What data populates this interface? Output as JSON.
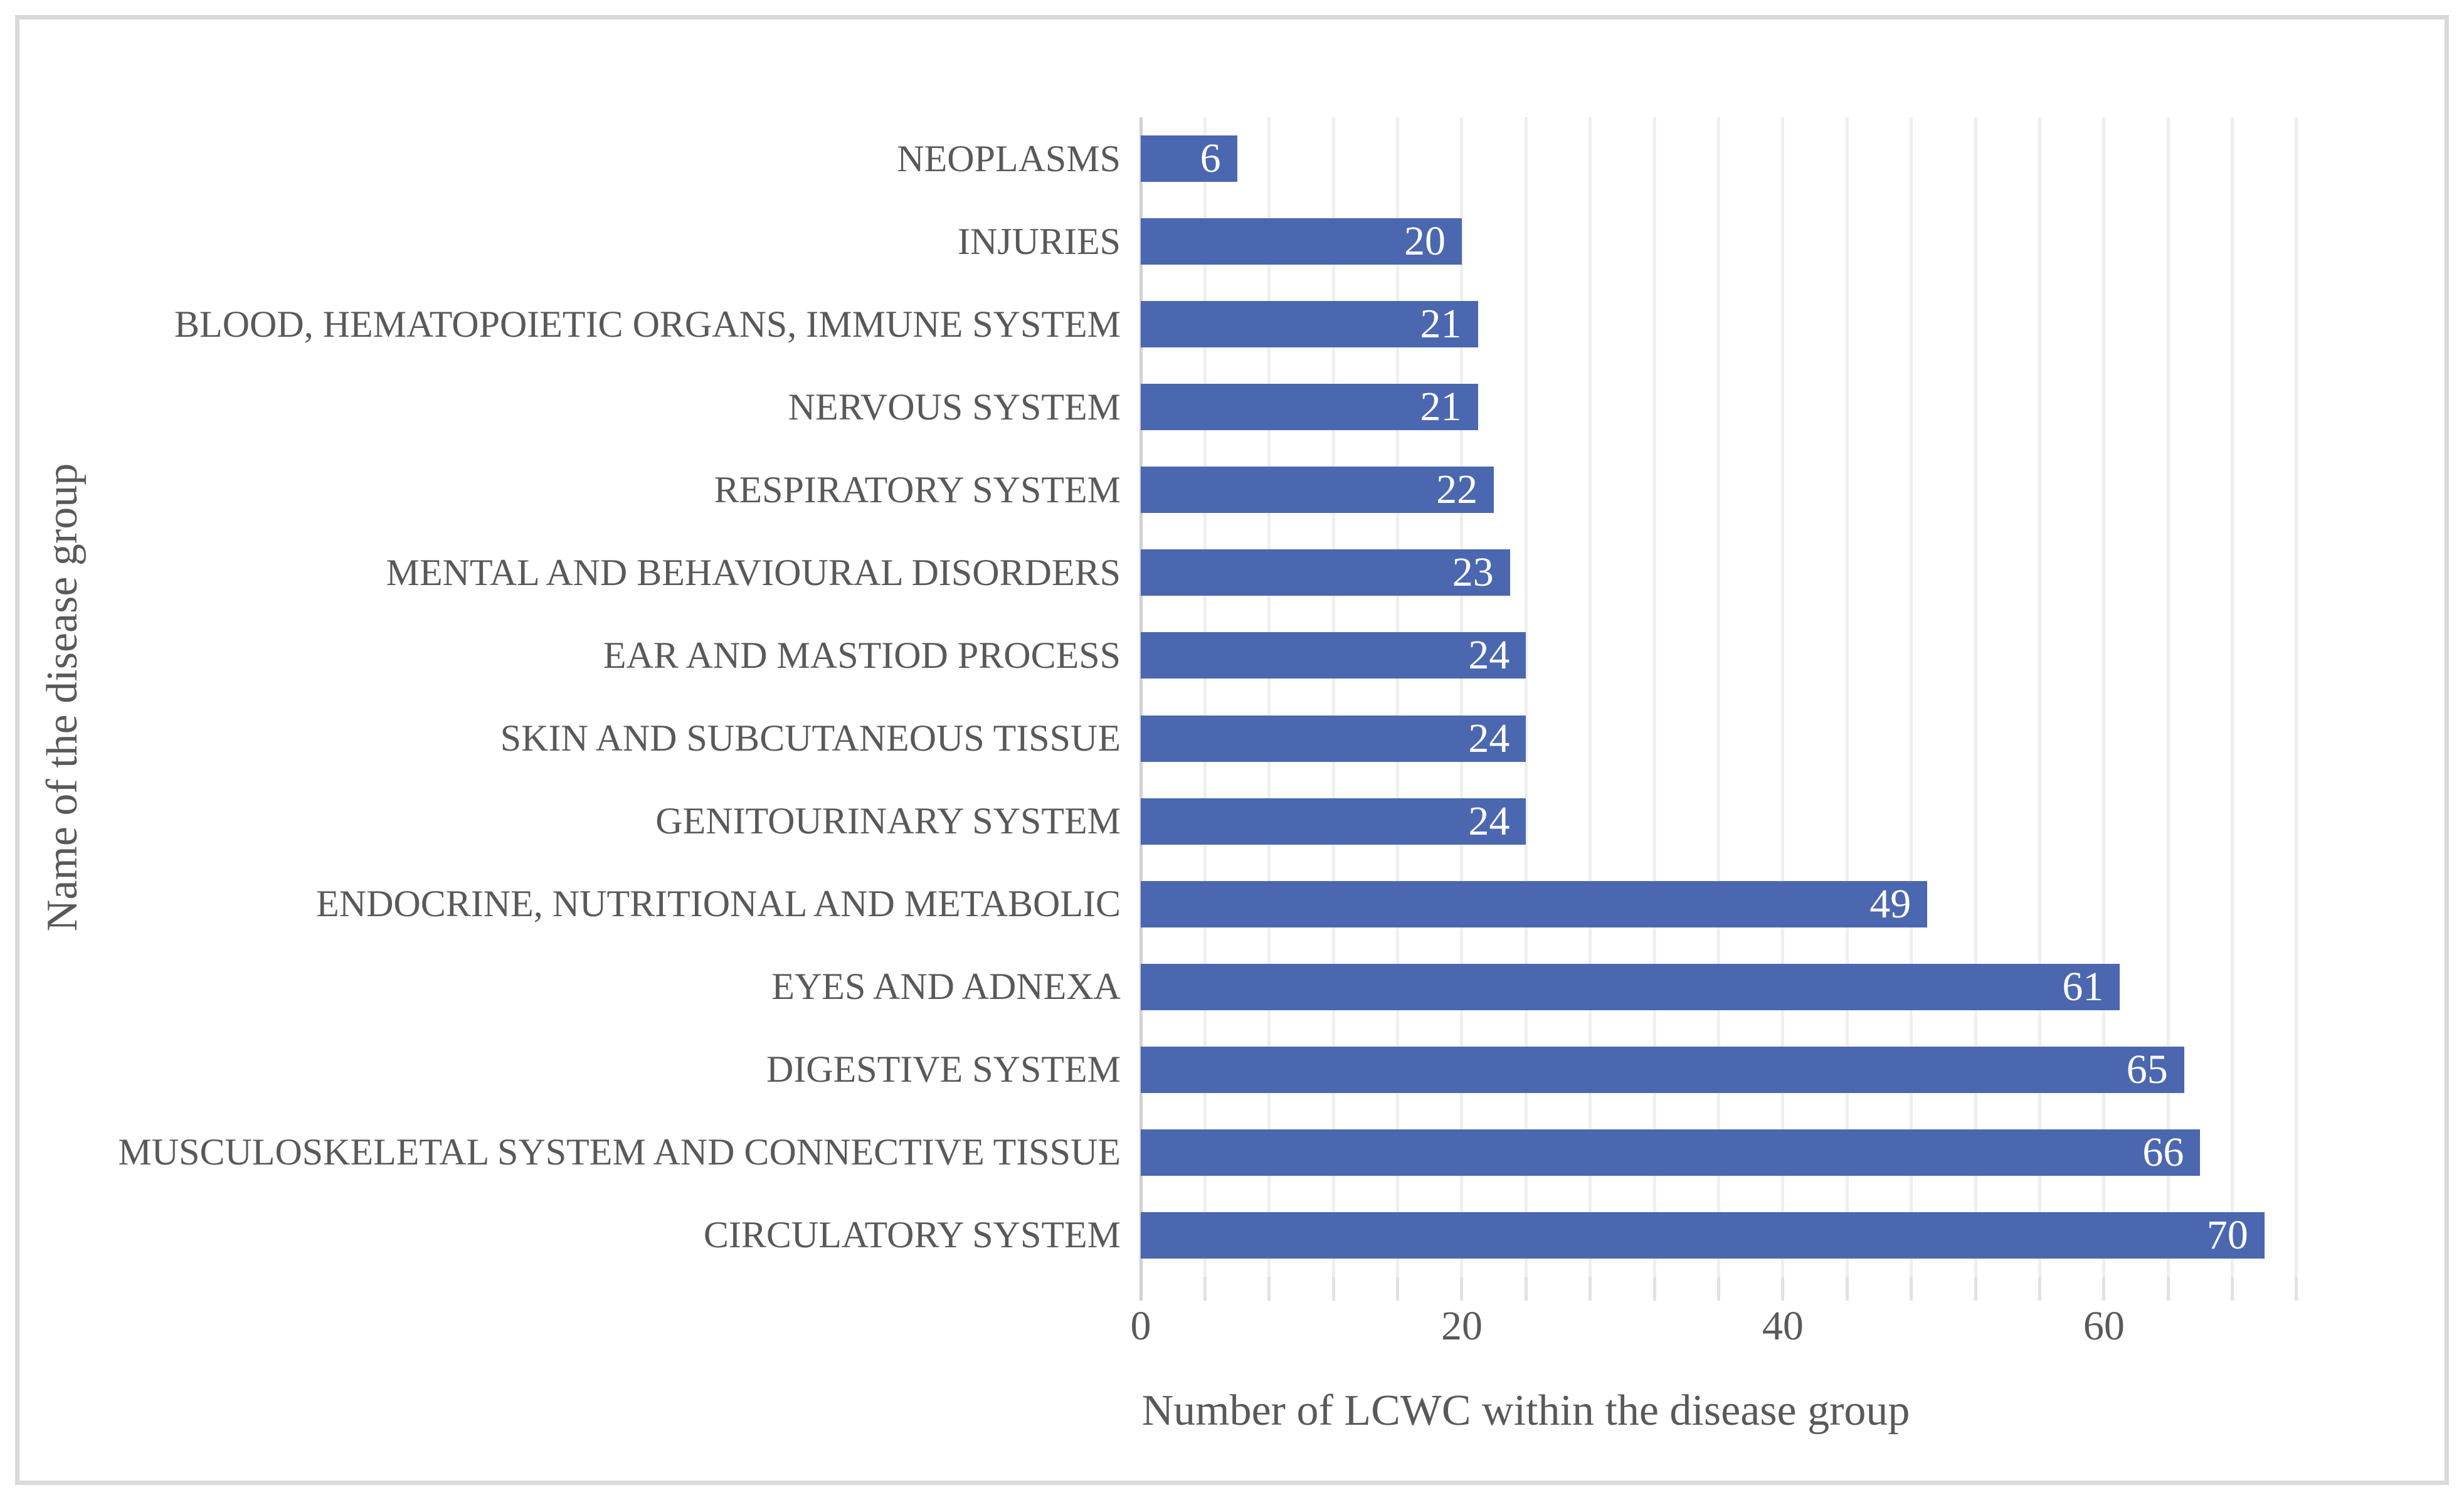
{
  "figure": {
    "background": "#ffffff",
    "border_color": "#d9d9d9"
  },
  "chart_data": {
    "type": "bar",
    "orientation": "horizontal",
    "title": "",
    "xlabel": "Number of LCWC within the disease group",
    "ylabel": "Name of the disease group",
    "categories": [
      "NEOPLASMS",
      "INJURIES",
      "BLOOD, HEMATOPOIETIC ORGANS, IMMUNE SYSTEM",
      "NERVOUS SYSTEM",
      "RESPIRATORY SYSTEM",
      "MENTAL AND BEHAVIOURAL DISORDERS",
      "EAR AND MASTIOD PROCESS",
      "SKIN AND SUBCUTANEOUS TISSUE",
      "GENITOURINARY SYSTEM",
      "ENDOCRINE, NUTRITIONAL AND METABOLIC",
      "EYES AND ADNEXA",
      "DIGESTIVE SYSTEM",
      "MUSCULOSKELETAL SYSTEM AND CONNECTIVE TISSUE",
      "CIRCULATORY SYSTEM"
    ],
    "values": [
      6,
      20,
      21,
      21,
      22,
      23,
      24,
      24,
      24,
      49,
      61,
      65,
      66,
      70
    ],
    "data_label_position": "inside-end",
    "data_label_color": "#ffffff",
    "xlim": [
      0,
      72
    ],
    "x_tick_labels": [
      "0",
      "20",
      "40",
      "60"
    ],
    "x_tick_values": [
      0,
      20,
      40,
      60
    ],
    "gridline_step": 4,
    "grid": true,
    "legend": "none",
    "bar_color": "#4b67af",
    "gridline_color": "#efefef",
    "axis_line_color": "#d2d2d2",
    "axis_text_color": "#595959"
  }
}
